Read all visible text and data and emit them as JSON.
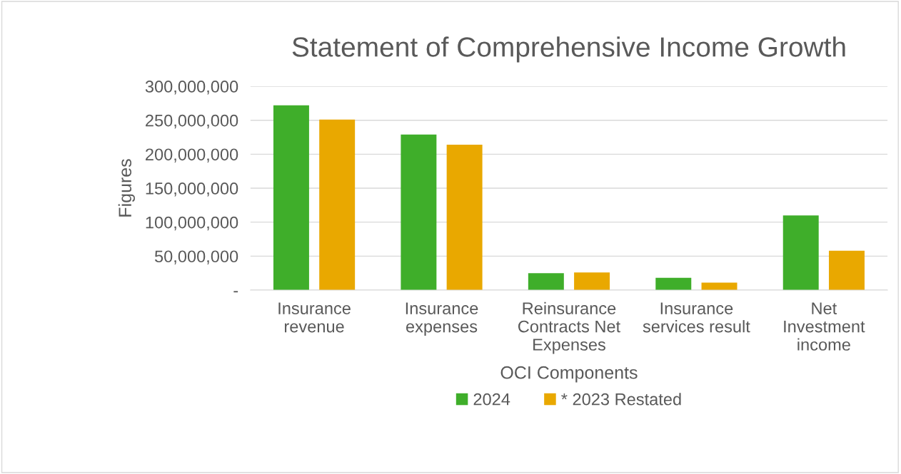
{
  "chart_data": {
    "type": "bar",
    "title": "Statement of Comprehensive Income Growth",
    "xlabel": "OCI Components",
    "ylabel": "Figures",
    "categories": [
      "Insurance\nrevenue",
      "Insurance\nexpenses",
      "Reinsurance\nContracts Net\nExpenses",
      "Insurance\nservices result",
      "Net\nInvestment\nincome"
    ],
    "series": [
      {
        "name": "2024",
        "color": "#3fae2a",
        "values": [
          272000000,
          229000000,
          25000000,
          18000000,
          110000000
        ]
      },
      {
        "name": "* 2023 Restated",
        "color": "#e9a800",
        "values": [
          251000000,
          214000000,
          26000000,
          11000000,
          58000000
        ]
      }
    ],
    "ylim": [
      0,
      300000000
    ],
    "yticks": [
      {
        "value": 0,
        "label": "-"
      },
      {
        "value": 50000000,
        "label": "50,000,000"
      },
      {
        "value": 100000000,
        "label": "100,000,000"
      },
      {
        "value": 150000000,
        "label": "150,000,000"
      },
      {
        "value": 200000000,
        "label": "200,000,000"
      },
      {
        "value": 250000000,
        "label": "250,000,000"
      },
      {
        "value": 300000000,
        "label": "300,000,000"
      }
    ],
    "grid": "y",
    "legend": "bottom"
  }
}
